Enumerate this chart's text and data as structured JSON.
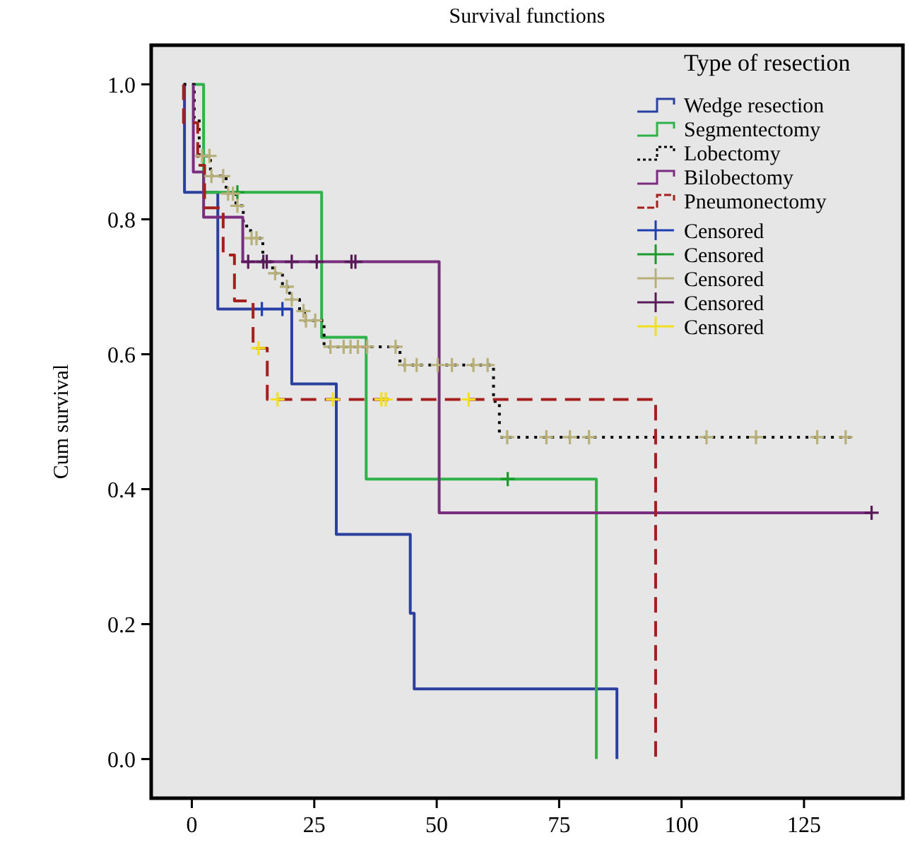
{
  "chart_data": {
    "type": "step",
    "title": "Survival functions",
    "ylabel": "Cum survival",
    "legend_title": "Type of resection",
    "legend": "top right",
    "xlim": [
      -8.3,
      145.2
    ],
    "ylim": [
      -0.058,
      1.058
    ],
    "xticks": [
      0,
      25,
      50,
      75,
      100,
      125
    ],
    "yticks": [
      {
        "value": 0,
        "label": "0.0"
      },
      {
        "value": 0.2,
        "label": "0.2"
      },
      {
        "value": 0.4,
        "label": "0.4"
      },
      {
        "value": 0.6,
        "label": "0.6"
      },
      {
        "value": 0.8,
        "label": "0.8"
      },
      {
        "value": 1,
        "label": "1.0"
      }
    ],
    "series": [
      {
        "name": "Wedge resection",
        "color": "#2b3f9e",
        "line_style": "solid",
        "marker": "none",
        "x": [
          -1.7,
          -1.5,
          5.3,
          20.4,
          29.5,
          44.6,
          45.4,
          86.8
        ],
        "values": [
          1.0,
          0.84,
          0.667,
          0.556,
          0.333,
          0.216,
          0.104,
          0
        ]
      },
      {
        "name": "Segmentectomy",
        "color": "#2fb24a",
        "line_style": "solid",
        "marker": "none",
        "x": [
          0.5,
          2.4,
          26.5,
          35.6,
          82.6
        ],
        "values": [
          1.0,
          0.84,
          0.625,
          0.415,
          0
        ]
      },
      {
        "name": "Lobectomy",
        "color": "#000000",
        "line_style": "dotted",
        "marker": "none",
        "x": [
          -1.7,
          0.5,
          1.5,
          3.8,
          7.0,
          9.0,
          10.5,
          12.0,
          14.5,
          16.5,
          18.5,
          20.0,
          22.0,
          23.0,
          27.0,
          42.5,
          61.6,
          62.8,
          135.0
        ],
        "values": [
          1.0,
          0.95,
          0.894,
          0.864,
          0.838,
          0.82,
          0.79,
          0.772,
          0.737,
          0.72,
          0.7,
          0.681,
          0.664,
          0.65,
          0.611,
          0.584,
          0.53,
          0.477,
          0.477
        ]
      },
      {
        "name": "Bilobectomy",
        "color": "#7a2d7e",
        "line_style": "solid",
        "marker": "none",
        "x": [
          0.3,
          0.3,
          2.4,
          10.4,
          50.5,
          138.8
        ],
        "values": [
          1.0,
          0.87,
          0.803,
          0.737,
          0.365,
          0.365
        ]
      },
      {
        "name": "Pneumonectomy",
        "color": "#a3201f",
        "line_style": "dashed",
        "marker": "none",
        "x": [
          -1.7,
          -1.7,
          1.2,
          2.6,
          6.4,
          8.7,
          12.5,
          15.4,
          94.7
        ],
        "values": [
          1.0,
          0.943,
          0.88,
          0.817,
          0.747,
          0.679,
          0.609,
          0.533,
          0
        ]
      },
      {
        "name": "Censored",
        "type": "scatter",
        "color": "#1f3fb0",
        "marker": "cross",
        "x": [
          14.3,
          18.5
        ],
        "values": [
          0.667,
          0.667
        ]
      },
      {
        "name": "Censored",
        "type": "scatter",
        "color": "#1a9a2a",
        "marker": "cross",
        "x": [
          9.3,
          64.5
        ],
        "values": [
          0.84,
          0.415
        ]
      },
      {
        "name": "Censored",
        "type": "scatter",
        "color": "#b8b07a",
        "marker": "cross",
        "x": [
          2.1,
          3.6,
          4.0,
          6.4,
          7.4,
          8.4,
          9.3,
          12.2,
          13.2,
          17.0,
          19.4,
          20.4,
          22.8,
          23.3,
          25.2,
          28.3,
          31.0,
          32.4,
          33.9,
          35.8,
          41.6,
          43.5,
          45.9,
          50.2,
          53.1,
          57.5,
          60.4,
          64.4,
          72.4,
          77.2,
          81.1,
          105.1,
          115.2,
          127.7,
          133.5
        ],
        "values": [
          0.894,
          0.894,
          0.864,
          0.864,
          0.838,
          0.838,
          0.82,
          0.772,
          0.772,
          0.72,
          0.7,
          0.681,
          0.664,
          0.65,
          0.65,
          0.611,
          0.611,
          0.611,
          0.611,
          0.611,
          0.611,
          0.584,
          0.584,
          0.584,
          0.584,
          0.584,
          0.584,
          0.477,
          0.477,
          0.477,
          0.477,
          0.477,
          0.477,
          0.477,
          0.477
        ]
      },
      {
        "name": "Censored",
        "type": "scatter",
        "color": "#5a1a5a",
        "marker": "cross",
        "x": [
          11.5,
          14.6,
          15.3,
          20.4,
          25.5,
          32.6,
          33.4,
          138.8
        ],
        "values": [
          0.737,
          0.737,
          0.737,
          0.737,
          0.737,
          0.737,
          0.737,
          0.365
        ]
      },
      {
        "name": "Censored",
        "type": "scatter",
        "color": "#f0e020",
        "marker": "cross",
        "x": [
          13.6,
          17.5,
          28.8,
          38.7,
          39.6,
          56.5
        ],
        "values": [
          0.609,
          0.533,
          0.533,
          0.533,
          0.533,
          0.533
        ]
      }
    ]
  }
}
